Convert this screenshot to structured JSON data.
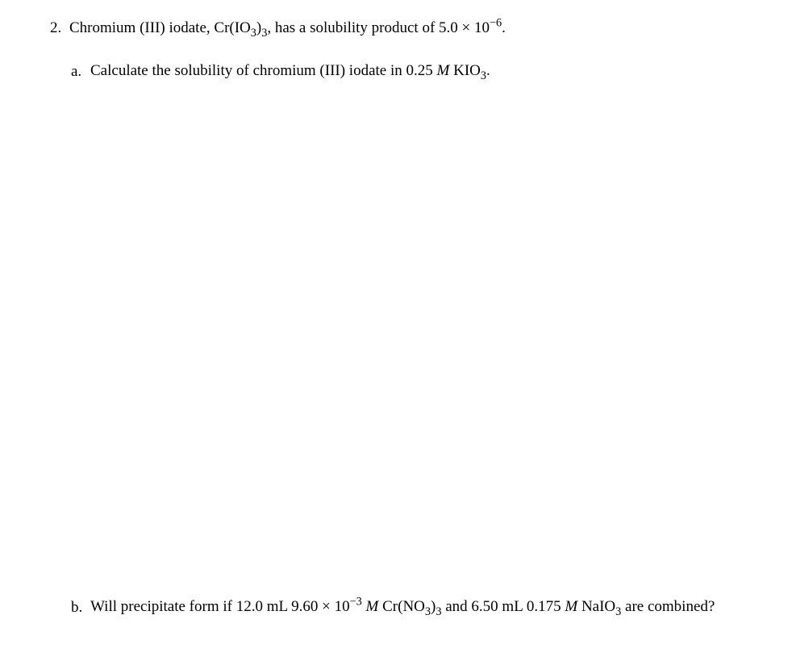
{
  "document": {
    "background_color": "#ffffff",
    "text_color": "#000000",
    "font_family": "Times New Roman, Times, serif",
    "font_size_pt": 14
  },
  "question": {
    "number": "2.",
    "main_text_parts": {
      "prefix": "Chromium (III) iodate, Cr(IO",
      "sub1": "3",
      "mid1": ")",
      "sub2": "3",
      "mid2": ", has a solubility product of 5.0 × 10",
      "sup1": "−6",
      "suffix": "."
    },
    "part_a": {
      "letter": "a.",
      "text_parts": {
        "prefix": "Calculate the solubility of chromium (III) iodate in 0.25 ",
        "italic1": "M",
        "mid1": " KIO",
        "sub1": "3",
        "suffix": "."
      }
    },
    "part_b": {
      "letter": "b.",
      "text_parts": {
        "prefix": "Will precipitate form if 12.0 mL 9.60 × 10",
        "sup1": "−3",
        "mid1": " ",
        "italic1": "M",
        "mid2": " Cr(NO",
        "sub1": "3",
        "mid3": ")",
        "sub2": "3",
        "mid4": " and 6.50 mL 0.175 ",
        "italic2": "M",
        "mid5": " NaIO",
        "sub3": "3",
        "mid6": " are combined?"
      }
    }
  }
}
